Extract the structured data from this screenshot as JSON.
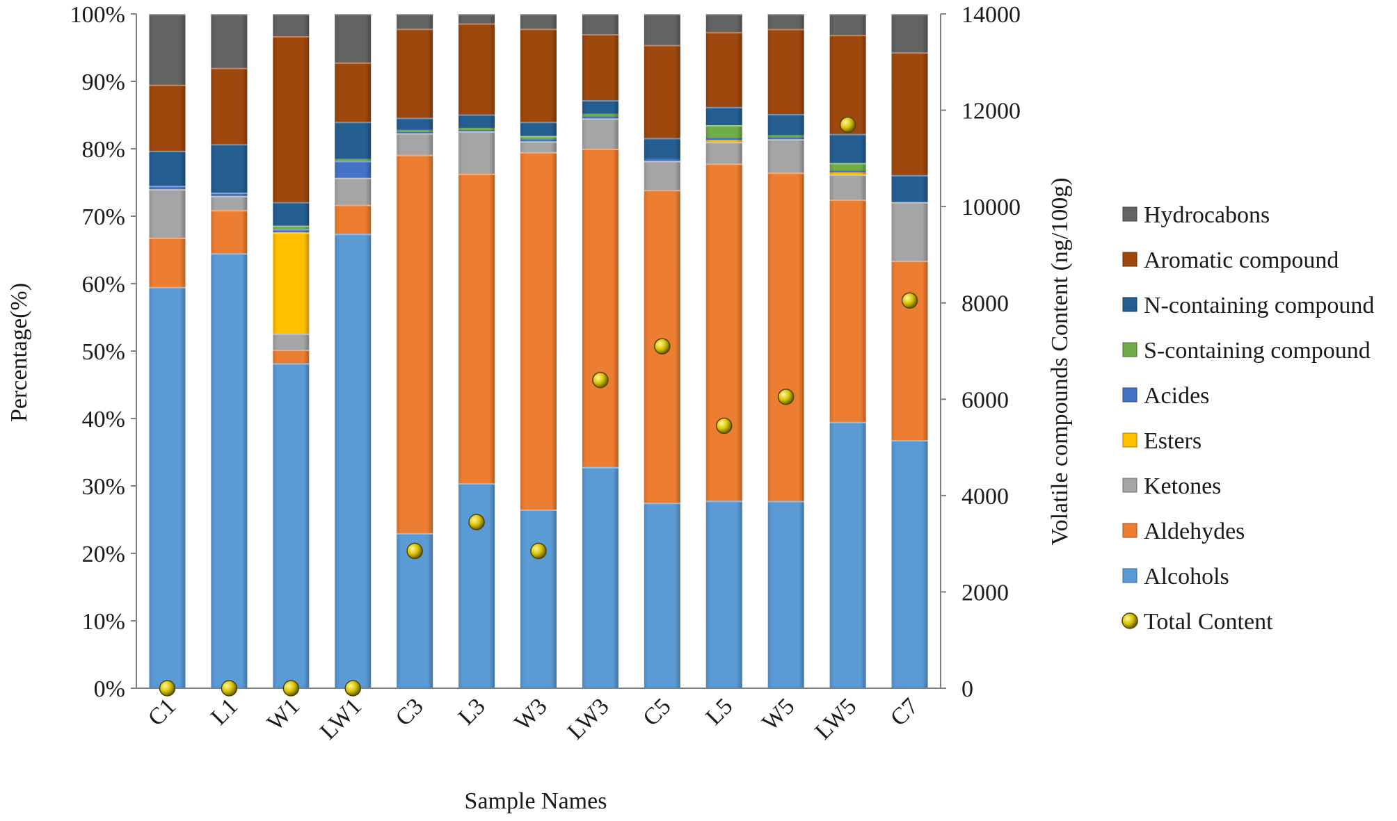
{
  "chart_data": {
    "type": "bar",
    "stacked": "percent",
    "xlabel": "Sample Names",
    "ylabel": "Percentage(%)",
    "y2label": "Volatile compounds Content (ng/100g)",
    "ylim": [
      0,
      100
    ],
    "y2lim": [
      0,
      14000
    ],
    "yticks": [
      "0%",
      "10%",
      "20%",
      "30%",
      "40%",
      "50%",
      "60%",
      "70%",
      "80%",
      "90%",
      "100%"
    ],
    "y2ticks": [
      "0",
      "2000",
      "4000",
      "6000",
      "8000",
      "10000",
      "12000",
      "14000"
    ],
    "legend_position": "right",
    "categories": [
      "C1",
      "L1",
      "W1",
      "LW1",
      "C3",
      "L3",
      "W3",
      "LW3",
      "C5",
      "L5",
      "W5",
      "LW5",
      "C7"
    ],
    "series": [
      {
        "name": "Alcohols",
        "color": "#5b9bd5",
        "values": [
          59.5,
          64.5,
          48.2,
          67.4,
          23.0,
          30.4,
          26.5,
          32.8,
          27.5,
          27.8,
          27.5,
          39.3,
          36.8
        ]
      },
      {
        "name": "Aldehydes",
        "color": "#ed7d31",
        "values": [
          7.3,
          6.4,
          2.0,
          4.3,
          56.1,
          45.9,
          53.0,
          47.2,
          46.4,
          50.0,
          48.2,
          32.8,
          26.6
        ]
      },
      {
        "name": "Ketones",
        "color": "#a5a5a5",
        "values": [
          7.2,
          2.1,
          2.4,
          4.0,
          3.2,
          6.3,
          1.6,
          4.5,
          4.3,
          3.2,
          4.9,
          3.7,
          8.7
        ]
      },
      {
        "name": "Esters",
        "color": "#ffc000",
        "values": [
          0.0,
          0.0,
          15.0,
          0.0,
          0.0,
          0.0,
          0.0,
          0.0,
          0.0,
          0.3,
          0.0,
          0.3,
          0.0
        ]
      },
      {
        "name": "Acides",
        "color": "#4472c4",
        "values": [
          0.5,
          0.5,
          0.5,
          2.5,
          0.2,
          0.2,
          0.3,
          0.3,
          0.3,
          0.3,
          0.3,
          0.3,
          0.0
        ]
      },
      {
        "name": "S-containing compound",
        "color": "#70ad47",
        "values": [
          0.0,
          0.0,
          0.5,
          0.3,
          0.3,
          0.3,
          0.5,
          0.4,
          0.0,
          1.9,
          0.3,
          1.1,
          0.0
        ]
      },
      {
        "name": "N-containing compound",
        "color": "#255e91",
        "values": [
          5.2,
          7.2,
          3.5,
          5.5,
          1.8,
          2.0,
          2.1,
          2.0,
          3.1,
          2.7,
          3.1,
          4.3,
          4.0
        ]
      },
      {
        "name": "Aromatic compound",
        "color": "#9e480e",
        "values": [
          9.8,
          11.3,
          24.6,
          8.8,
          13.2,
          13.5,
          13.8,
          9.8,
          13.8,
          11.1,
          12.5,
          14.6,
          18.2
        ]
      },
      {
        "name": "Hydrocabons",
        "color": "#636363",
        "values": [
          10.5,
          8.0,
          3.3,
          7.2,
          2.2,
          1.4,
          2.2,
          3.0,
          4.6,
          2.7,
          2.2,
          3.1,
          5.7
        ]
      }
    ],
    "legend_order": [
      "Hydrocabons",
      "Aromatic compound",
      "N-containing compound",
      "S-containing compound",
      "Acides",
      "Esters",
      "Ketones",
      "Aldehydes",
      "Alcohols",
      "Total Content"
    ],
    "total_content": {
      "name": "Total Content",
      "color": "#c8b400",
      "values": [
        0,
        0,
        0,
        0,
        2850,
        3450,
        2850,
        6400,
        7100,
        5450,
        6050,
        11700,
        8050
      ]
    }
  }
}
